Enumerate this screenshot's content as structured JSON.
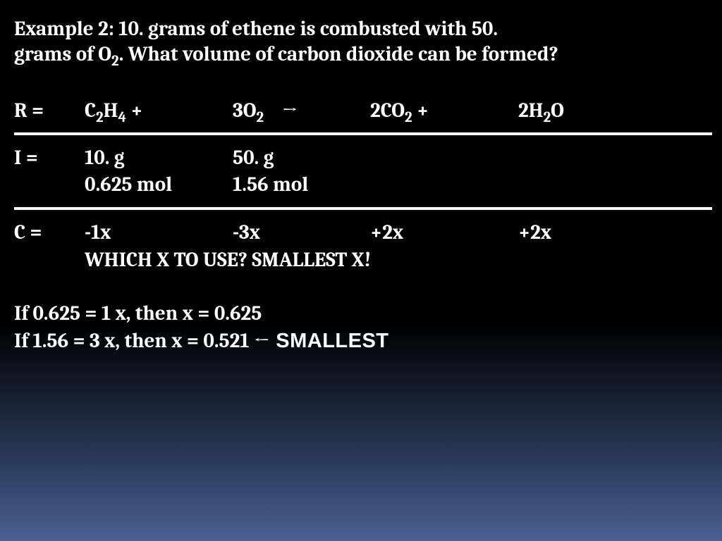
{
  "problem": {
    "line1": "Example 2: 10. grams of ethene is combusted with 50.",
    "line2_prefix": "grams of  O",
    "line2_sub": "2",
    "line2_suffix": ".  What volume of carbon dioxide can be formed?"
  },
  "equation": {
    "R_label": "R =",
    "c2h4": {
      "pre": "C",
      "s1": "2",
      "mid": "H",
      "s2": "4",
      "post": " +"
    },
    "o2": {
      "pre": "3O",
      "s1": "2",
      "post": ""
    },
    "arrow": "→",
    "co2": {
      "pre": "2CO",
      "s1": "2",
      "post": "  +"
    },
    "h2o": {
      "pre": "2H",
      "s1": "2",
      "post": "O"
    }
  },
  "initial": {
    "I_label": "I =",
    "grams_c2h4": "10. g",
    "grams_o2": "50. g",
    "mol_c2h4": "0.625 mol",
    "mol_o2": "1.56 mol"
  },
  "change": {
    "C_label": "C =",
    "c1": "-1x",
    "c2": "-3x",
    "c3": "+2x",
    "c4": "+2x",
    "note": "WHICH X TO USE?  SMALLEST X!"
  },
  "calc": {
    "line1": "If 0.625 = 1 x, then x = 0.625",
    "line2": "If 1.56 = 3 x, then x = 0.521  ←",
    "smallest": " SMALLEST"
  },
  "style": {
    "text_color": "#ffffff",
    "divider_color": "#ffffff",
    "font_main": "Cambria, Georgia, serif",
    "font_tag": "Arial, Helvetica, sans-serif",
    "fontsize_pt": 29
  }
}
